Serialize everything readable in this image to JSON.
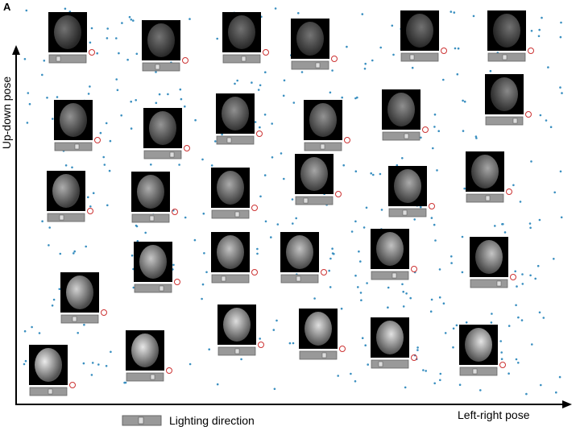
{
  "panel_label": "A",
  "y_axis_label": "Up-down pose",
  "x_axis_label": "Left-right pose",
  "legend": {
    "label": "Lighting direction"
  }
}
